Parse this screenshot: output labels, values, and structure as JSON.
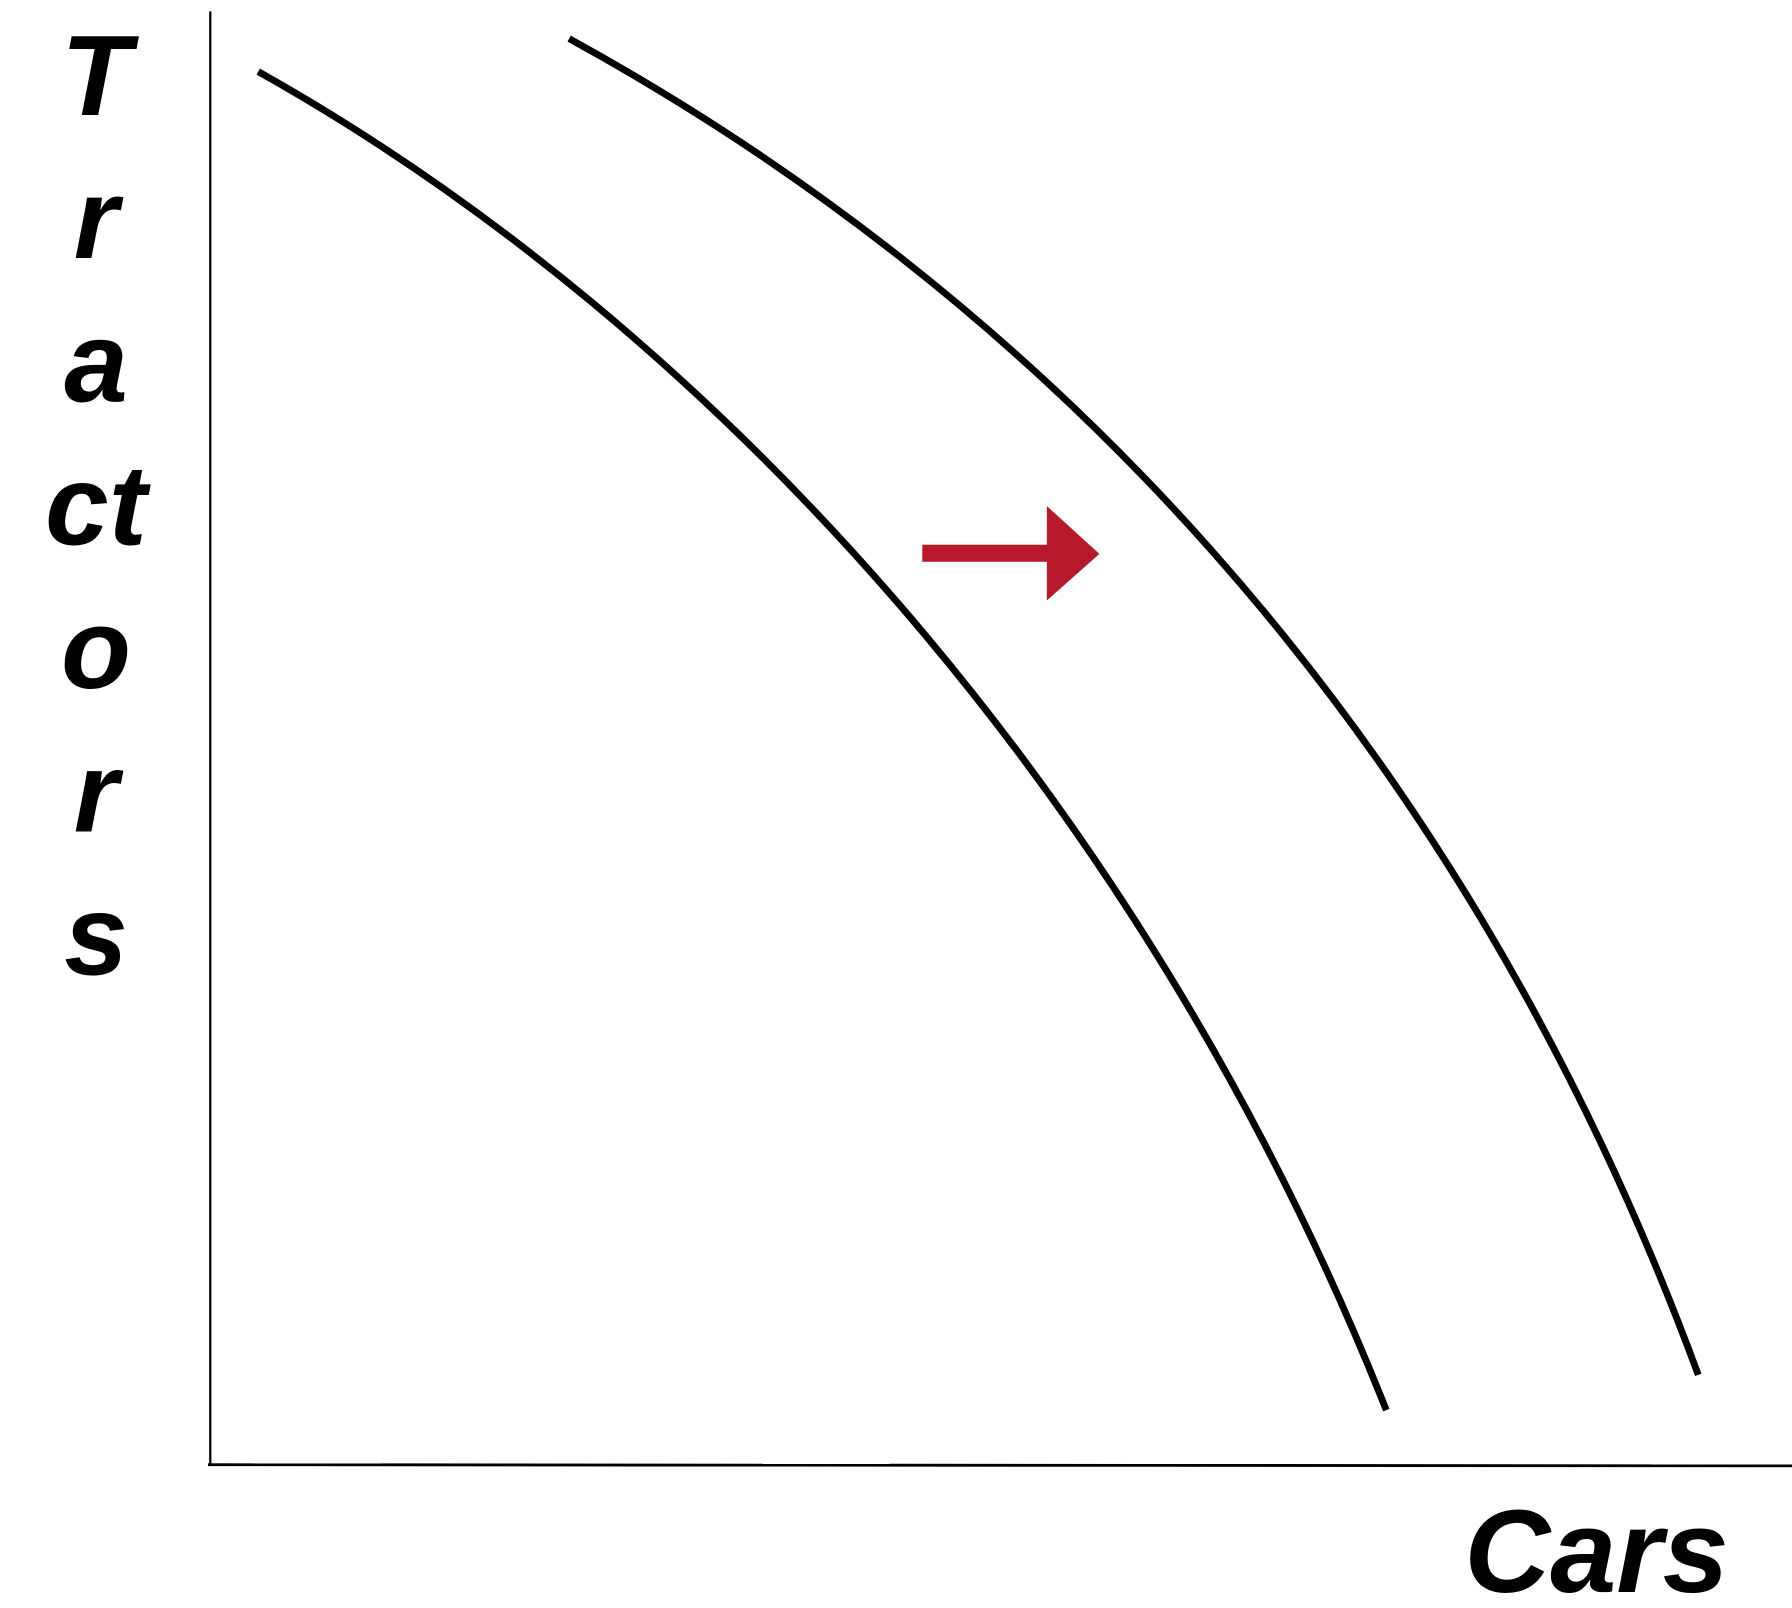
{
  "diagram": {
    "y_axis_label_lines": [
      "T",
      "r",
      "a",
      "ct",
      "o",
      "r",
      "s"
    ],
    "x_axis_label": "Cars"
  }
}
